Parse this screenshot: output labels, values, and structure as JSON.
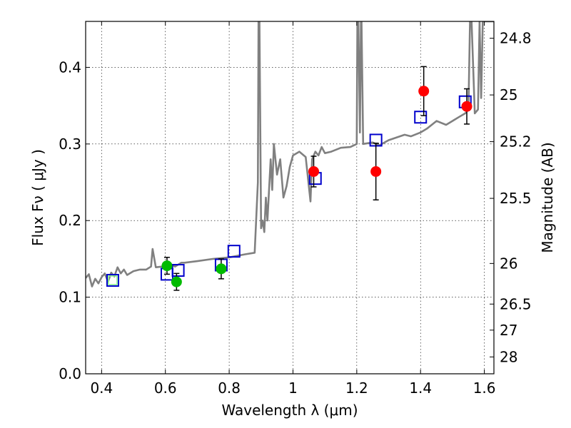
{
  "chart_data": {
    "type": "scatter",
    "title": "",
    "xlabel": "Wavelength  λ (μm)",
    "ylabel": "Flux  Fν ( μJy )",
    "y2label": "Magnitude (AB)",
    "xlim": [
      0.35,
      1.63
    ],
    "ylim": [
      0.0,
      0.46
    ],
    "grid": true,
    "x_ticks": [
      0.4,
      0.6,
      0.8,
      1.0,
      1.2,
      1.4,
      1.6
    ],
    "x_tick_labels": [
      "0.4",
      "0.6",
      "0.8",
      "1",
      "1.2",
      "1.4",
      "1.6"
    ],
    "y_ticks": [
      0.0,
      0.1,
      0.2,
      0.3,
      0.4
    ],
    "y_tick_labels": [
      "0.0",
      "0.1",
      "0.2",
      "0.3",
      "0.4"
    ],
    "y2_ticks": [
      {
        "label": "24.8",
        "flux": 0.438
      },
      {
        "label": "25",
        "flux": 0.364
      },
      {
        "label": "25.2",
        "flux": 0.303
      },
      {
        "label": "25.5",
        "flux": 0.229
      },
      {
        "label": "26",
        "flux": 0.144
      },
      {
        "label": "26.5",
        "flux": 0.091
      },
      {
        "label": "27",
        "flux": 0.057
      },
      {
        "label": "28",
        "flux": 0.022
      }
    ],
    "colors": {
      "model": "#808080",
      "model_points": "#0000cc",
      "optical": "#00bb00",
      "nir": "#ff0000",
      "errorbar": "#000000",
      "light_box": "#88ff88"
    },
    "series": [
      {
        "marker": "line",
        "x": [
          0.35,
          0.36,
          0.37,
          0.38,
          0.39,
          0.4,
          0.41,
          0.42,
          0.43,
          0.44,
          0.45,
          0.46,
          0.47,
          0.48,
          0.5,
          0.52,
          0.54,
          0.555,
          0.56,
          0.57,
          0.59,
          0.61,
          0.63,
          0.65,
          0.66,
          0.7,
          0.75,
          0.8,
          0.85,
          0.88,
          0.89,
          0.892,
          0.895,
          0.9,
          0.905,
          0.91,
          0.915,
          0.92,
          0.93,
          0.935,
          0.94,
          0.95,
          0.96,
          0.97,
          0.98,
          0.99,
          1.0,
          1.02,
          1.04,
          1.055,
          1.06,
          1.07,
          1.08,
          1.09,
          1.1,
          1.12,
          1.15,
          1.18,
          1.2,
          1.202,
          1.205,
          1.21,
          1.213,
          1.215,
          1.22,
          1.25,
          1.27,
          1.3,
          1.35,
          1.37,
          1.4,
          1.42,
          1.45,
          1.48,
          1.5,
          1.52,
          1.54,
          1.55,
          1.555,
          1.56,
          1.57,
          1.58,
          1.585,
          1.59,
          1.595,
          1.6,
          1.605,
          1.61,
          1.62,
          1.63
        ],
        "y": [
          0.125,
          0.13,
          0.114,
          0.124,
          0.118,
          0.126,
          0.131,
          0.12,
          0.132,
          0.127,
          0.139,
          0.131,
          0.136,
          0.129,
          0.134,
          0.136,
          0.136,
          0.14,
          0.163,
          0.139,
          0.14,
          0.145,
          0.14,
          0.145,
          0.145,
          0.147,
          0.15,
          0.152,
          0.156,
          0.158,
          0.25,
          0.46,
          0.46,
          0.19,
          0.2,
          0.185,
          0.23,
          0.2,
          0.28,
          0.24,
          0.3,
          0.26,
          0.28,
          0.23,
          0.245,
          0.27,
          0.285,
          0.29,
          0.283,
          0.225,
          0.28,
          0.29,
          0.285,
          0.296,
          0.288,
          0.29,
          0.295,
          0.296,
          0.3,
          0.46,
          0.46,
          0.315,
          0.46,
          0.46,
          0.3,
          0.302,
          0.298,
          0.305,
          0.312,
          0.31,
          0.315,
          0.32,
          0.33,
          0.325,
          0.33,
          0.335,
          0.34,
          0.345,
          0.46,
          0.46,
          0.34,
          0.345,
          0.46,
          0.36,
          0.46,
          0.46,
          0.46,
          0.46,
          0.46,
          0.46
        ]
      },
      {
        "marker": "square",
        "x": [
          0.435,
          0.605,
          0.64,
          0.775,
          0.815,
          1.07,
          1.26,
          1.4,
          1.54
        ],
        "y": [
          0.122,
          0.13,
          0.135,
          0.142,
          0.16,
          0.255,
          0.305,
          0.335,
          0.355
        ]
      },
      {
        "marker": "circle",
        "x": [
          0.605,
          0.635,
          0.775
        ],
        "y": [
          0.141,
          0.12,
          0.137
        ],
        "err": [
          0.011,
          0.011,
          0.013
        ]
      },
      {
        "marker": "circle",
        "x": [
          1.065,
          1.26,
          1.41,
          1.545
        ],
        "y": [
          0.264,
          0.264,
          0.369,
          0.349
        ],
        "err": [
          0.02,
          0.037,
          0.032,
          0.023
        ]
      }
    ]
  }
}
